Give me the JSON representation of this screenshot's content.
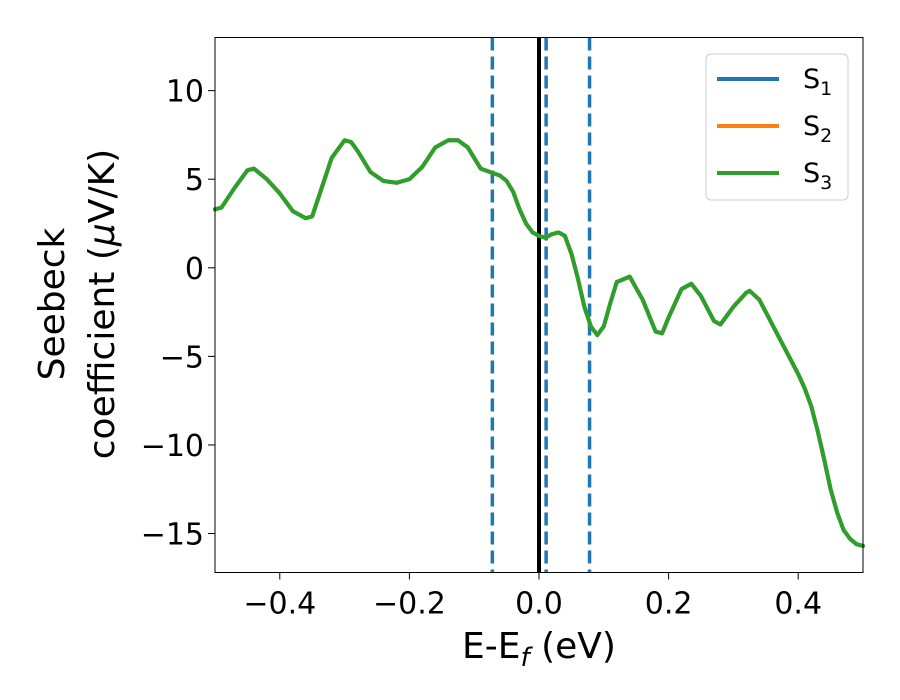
{
  "chart_data": {
    "type": "line",
    "xlabel": "E-E",
    "xlabel_sub": "f",
    "xlabel_unit": " (eV)",
    "ylabel_line1": "Seebeck",
    "ylabel_line2": "coefficient  (",
    "ylabel_mu": "μ",
    "ylabel_unit": "V/K)",
    "xlim": [
      -0.5,
      0.5
    ],
    "ylim": [
      -17.2,
      13.0
    ],
    "xticks": [
      -0.4,
      -0.2,
      0.0,
      0.2,
      0.4
    ],
    "xtick_labels": [
      "−0.4",
      "−0.2",
      "0.0",
      "0.2",
      "0.4"
    ],
    "yticks": [
      10,
      5,
      0,
      -5,
      -10,
      -15
    ],
    "ytick_labels": [
      "10",
      "5",
      "0",
      "−5",
      "−10",
      "−15"
    ],
    "grid": false,
    "legend_position": "top-right",
    "series": [
      {
        "name": "S",
        "sub": "1",
        "color": "#1f77b4",
        "x": [
          -0.5,
          -0.49,
          -0.47,
          -0.45,
          -0.44,
          -0.42,
          -0.4,
          -0.38,
          -0.36,
          -0.35,
          -0.34,
          -0.32,
          -0.3,
          -0.29,
          -0.28,
          -0.26,
          -0.24,
          -0.22,
          -0.2,
          -0.18,
          -0.16,
          -0.14,
          -0.125,
          -0.11,
          -0.1,
          -0.09,
          -0.075,
          -0.06,
          -0.05,
          -0.04,
          -0.03,
          -0.02,
          -0.01,
          0.0,
          0.01,
          0.02,
          0.03,
          0.04,
          0.05,
          0.06,
          0.07,
          0.08,
          0.09,
          0.1,
          0.11,
          0.12,
          0.14,
          0.16,
          0.18,
          0.19,
          0.2,
          0.22,
          0.235,
          0.25,
          0.27,
          0.28,
          0.3,
          0.32,
          0.325,
          0.34,
          0.36,
          0.38,
          0.4,
          0.41,
          0.42,
          0.43,
          0.44,
          0.45,
          0.46,
          0.47,
          0.48,
          0.49,
          0.5
        ],
        "y": [
          3.3,
          3.4,
          4.5,
          5.5,
          5.6,
          5.0,
          4.2,
          3.2,
          2.8,
          2.9,
          4.0,
          6.2,
          7.2,
          7.1,
          6.6,
          5.4,
          4.9,
          4.8,
          5.0,
          5.7,
          6.8,
          7.2,
          7.2,
          6.8,
          6.2,
          5.6,
          5.4,
          5.2,
          4.9,
          4.3,
          3.3,
          2.5,
          2.0,
          1.8,
          1.7,
          1.9,
          2.0,
          1.8,
          0.8,
          -0.6,
          -2.2,
          -3.3,
          -3.8,
          -3.3,
          -2.0,
          -0.8,
          -0.5,
          -1.8,
          -3.6,
          -3.7,
          -2.8,
          -1.2,
          -0.9,
          -1.6,
          -3.0,
          -3.2,
          -2.2,
          -1.4,
          -1.3,
          -1.8,
          -3.2,
          -4.6,
          -6.0,
          -6.8,
          -7.8,
          -9.2,
          -10.8,
          -12.5,
          -13.8,
          -14.8,
          -15.3,
          -15.6,
          -15.7
        ]
      },
      {
        "name": "S",
        "sub": "2",
        "color": "#ff7f0e",
        "same_as": 0
      },
      {
        "name": "S",
        "sub": "3",
        "color": "#2ca02c",
        "same_as": 0
      }
    ],
    "vlines": [
      {
        "x": -0.072,
        "color": "#1f77b4",
        "style": "dashed"
      },
      {
        "x": 0.0,
        "color": "#000000",
        "style": "solid"
      },
      {
        "x": 0.011,
        "color": "#1f77b4",
        "style": "dashed"
      },
      {
        "x": 0.078,
        "color": "#1f77b4",
        "style": "dashed"
      }
    ]
  }
}
